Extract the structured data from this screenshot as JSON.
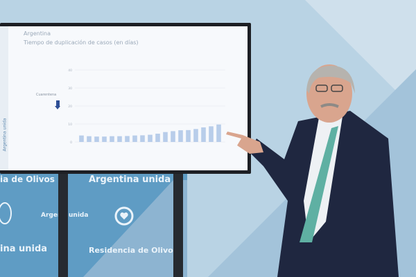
{
  "backdrop": {
    "texts": [
      "ia de Olivos",
      "Argentina unida",
      "Arger",
      "unida",
      "ina unida",
      "Residencia de Olivos"
    ],
    "colors": {
      "wall": "#b9d3e4",
      "panel": "#5f9cc4"
    },
    "icons": [
      "coat-of-arms-icon",
      "heart-circle-icon"
    ]
  },
  "screen": {
    "side_label": "Argentina unida",
    "title": "Argentina",
    "subtitle": "Tiempo de duplicación de casos (en días)",
    "annotation": "Cuarentena",
    "annotation_icon": "arrow-down-icon"
  },
  "chart_data": {
    "type": "bar",
    "title": "Argentina",
    "subtitle": "Tiempo de duplicación de casos (en días)",
    "ylim": [
      0,
      40
    ],
    "yticks": [
      "0",
      "10",
      "20",
      "30",
      "40"
    ],
    "values": [
      3.6,
      3.2,
      3.0,
      3.0,
      3.2,
      3.2,
      3.3,
      3.6,
      3.7,
      4.0,
      4.6,
      5.5,
      6.0,
      6.5,
      6.6,
      7.2,
      8.1,
      8.7,
      9.7
    ],
    "bar_color": "#b8cdea",
    "grid": true,
    "annotation": "Cuarentena"
  }
}
